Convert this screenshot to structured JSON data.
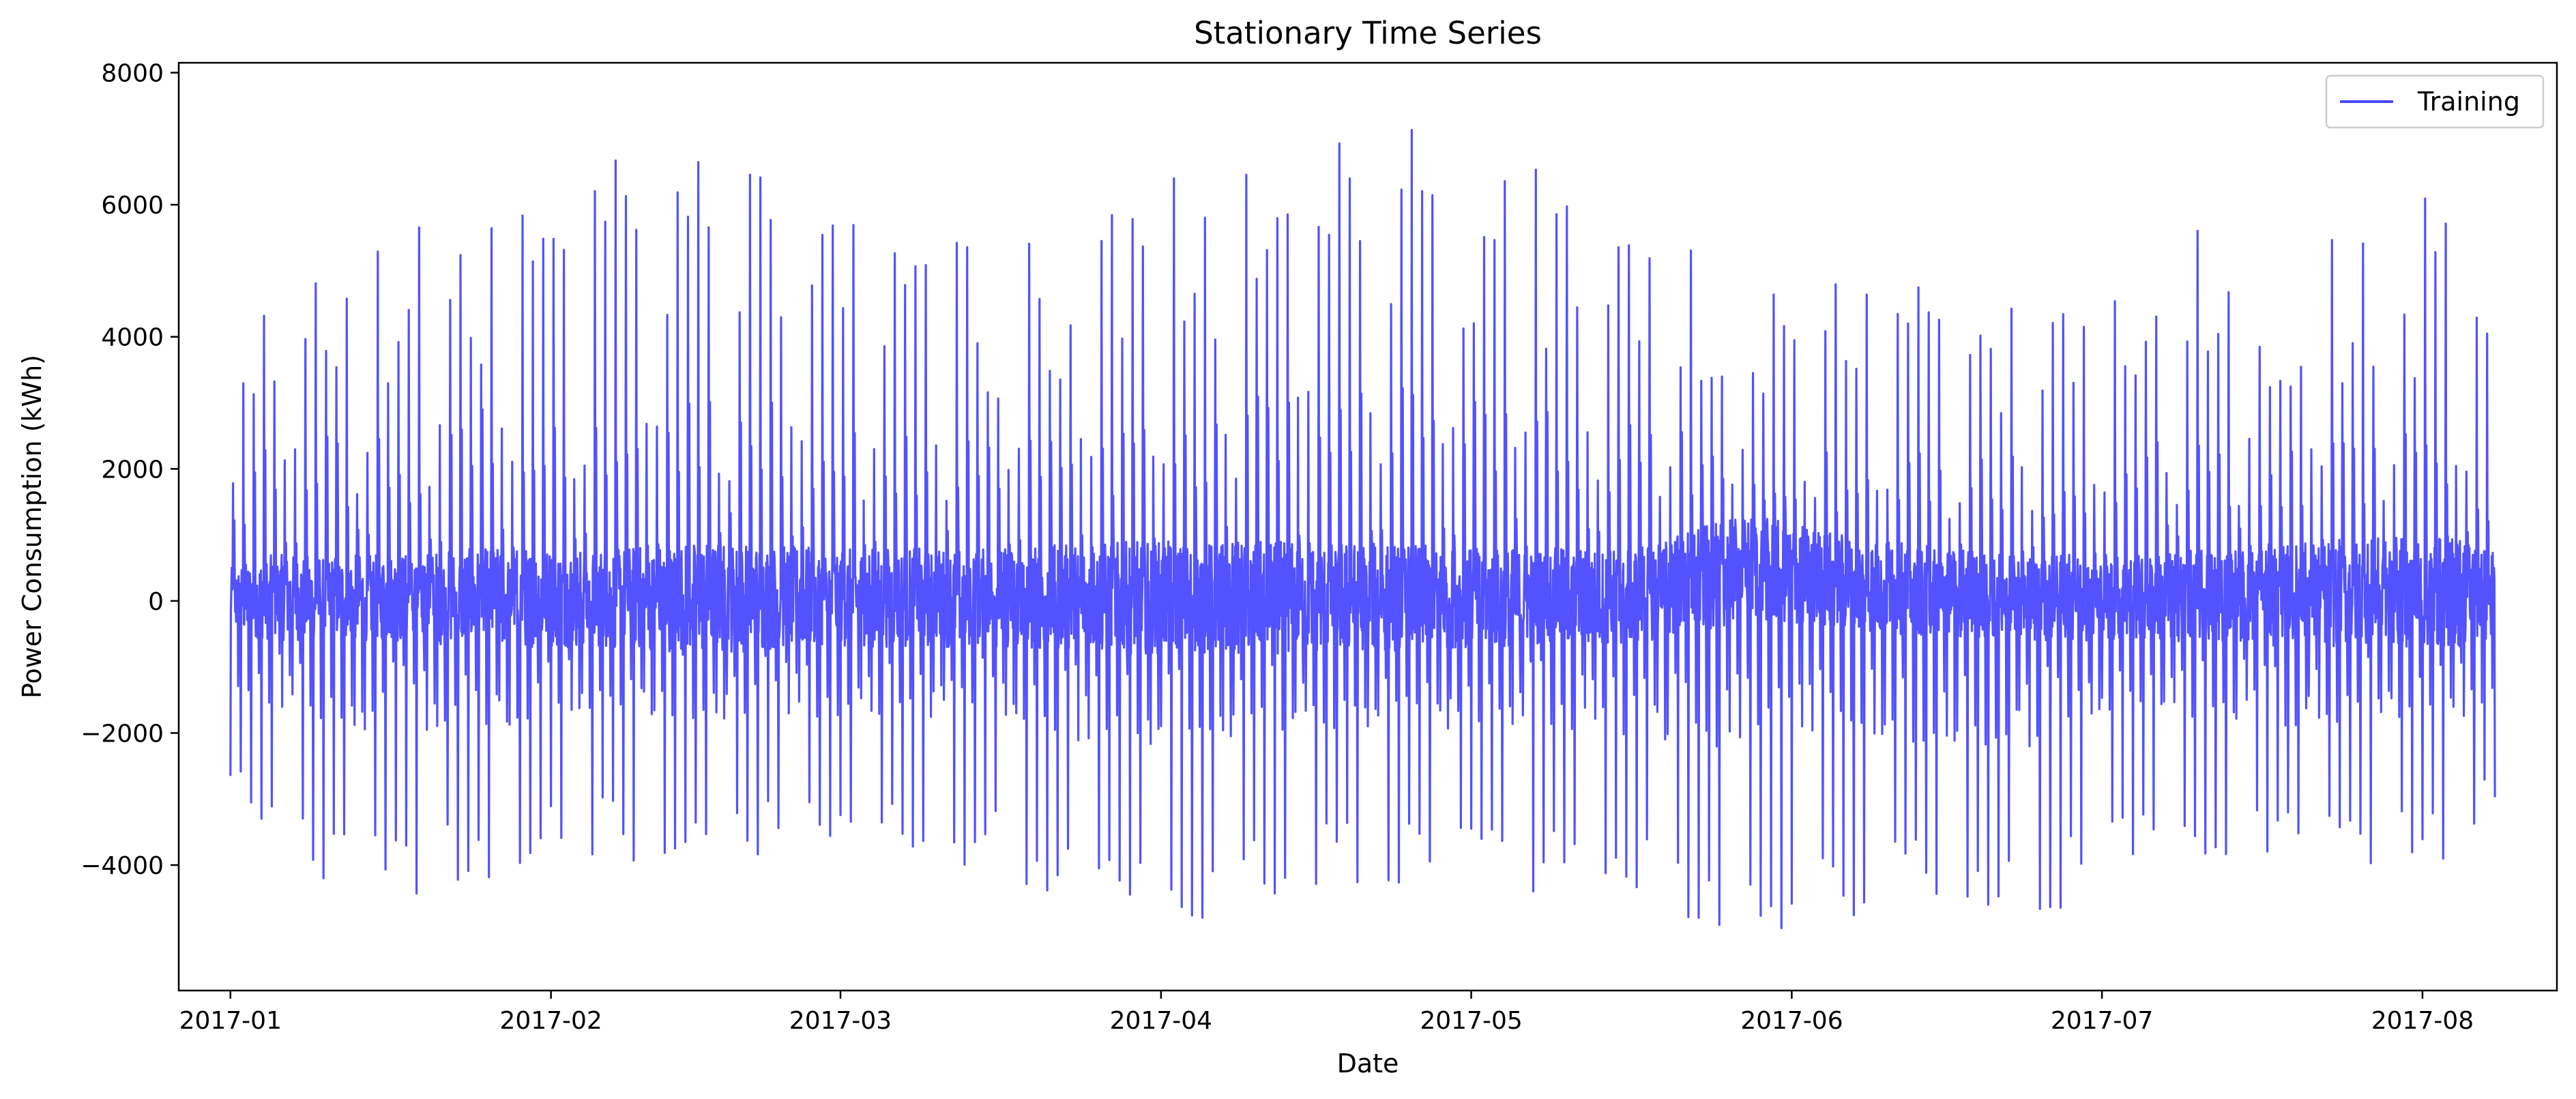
{
  "chart_data": {
    "type": "line",
    "title": "Stationary Time Series",
    "xlabel": "Date",
    "ylabel": "Power Consumption (kWh)",
    "x_range": [
      "2016-12-27",
      "2017-08-14"
    ],
    "ylim": [
      -5900,
      8150
    ],
    "x_ticks": [
      "2017-01",
      "2017-02",
      "2017-03",
      "2017-04",
      "2017-05",
      "2017-06",
      "2017-07",
      "2017-08"
    ],
    "y_ticks": [
      -4000,
      -2000,
      0,
      2000,
      4000,
      6000,
      8000
    ],
    "y_tick_labels": [
      "−4000",
      "−2000",
      "0",
      "2000",
      "4000",
      "6000",
      "8000"
    ],
    "grid": false,
    "legend": {
      "position": "top-right",
      "entries": [
        "Training"
      ]
    },
    "series": [
      {
        "name": "Training",
        "color": "#4949ff",
        "period_days": 1,
        "x_start": "2017-01-01",
        "x_end": "2017-08-08",
        "anchors": [
          {
            "x": "2017-01-01",
            "peak": 2650,
            "trough": -2900,
            "band_hi": 500,
            "band_lo": -500
          },
          {
            "x": "2017-01-05",
            "peak": 5650,
            "trough": -3900,
            "band_hi": 700,
            "band_lo": -600
          },
          {
            "x": "2017-01-15",
            "peak": 5450,
            "trough": -4550,
            "band_hi": 700,
            "band_lo": -600
          },
          {
            "x": "2017-01-25",
            "peak": 6450,
            "trough": -4350,
            "band_hi": 800,
            "band_lo": -700
          },
          {
            "x": "2017-02-05",
            "peak": 6900,
            "trough": -3900,
            "band_hi": 800,
            "band_lo": -700
          },
          {
            "x": "2017-02-16",
            "peak": 7400,
            "trough": -4100,
            "band_hi": 900,
            "band_lo": -800
          },
          {
            "x": "2017-03-01",
            "peak": 6250,
            "trough": -3850,
            "band_hi": 800,
            "band_lo": -700
          },
          {
            "x": "2017-03-15",
            "peak": 5400,
            "trough": -4050,
            "band_hi": 800,
            "band_lo": -700
          },
          {
            "x": "2017-03-29",
            "peak": 6350,
            "trough": -5250,
            "band_hi": 900,
            "band_lo": -800
          },
          {
            "x": "2017-04-10",
            "peak": 6900,
            "trough": -4500,
            "band_hi": 900,
            "band_lo": -800
          },
          {
            "x": "2017-04-19",
            "peak": 7450,
            "trough": -4300,
            "band_hi": 900,
            "band_lo": -800
          },
          {
            "x": "2017-05-01",
            "peak": 7100,
            "trough": -4350,
            "band_hi": 800,
            "band_lo": -700
          },
          {
            "x": "2017-05-15",
            "peak": 6350,
            "trough": -4600,
            "band_hi": 800,
            "band_lo": -700
          },
          {
            "x": "2017-05-28",
            "peak": 5200,
            "trough": -5050,
            "band_hi": 1300,
            "band_lo": -300
          },
          {
            "x": "2017-06-10",
            "peak": 5150,
            "trough": -4750,
            "band_hi": 900,
            "band_lo": -500
          },
          {
            "x": "2017-06-25",
            "peak": 4800,
            "trough": -4900,
            "band_hi": 700,
            "band_lo": -600
          },
          {
            "x": "2017-07-05",
            "peak": 5800,
            "trough": -3900,
            "band_hi": 700,
            "band_lo": -600
          },
          {
            "x": "2017-07-20",
            "peak": 5550,
            "trough": -4250,
            "band_hi": 900,
            "band_lo": -700
          },
          {
            "x": "2017-08-05",
            "peak": 6300,
            "trough": -4050,
            "band_hi": 1000,
            "band_lo": -700
          },
          {
            "x": "2017-08-08",
            "peak": 3450,
            "trough": -3100,
            "band_hi": 800,
            "band_lo": -600
          }
        ]
      }
    ]
  }
}
